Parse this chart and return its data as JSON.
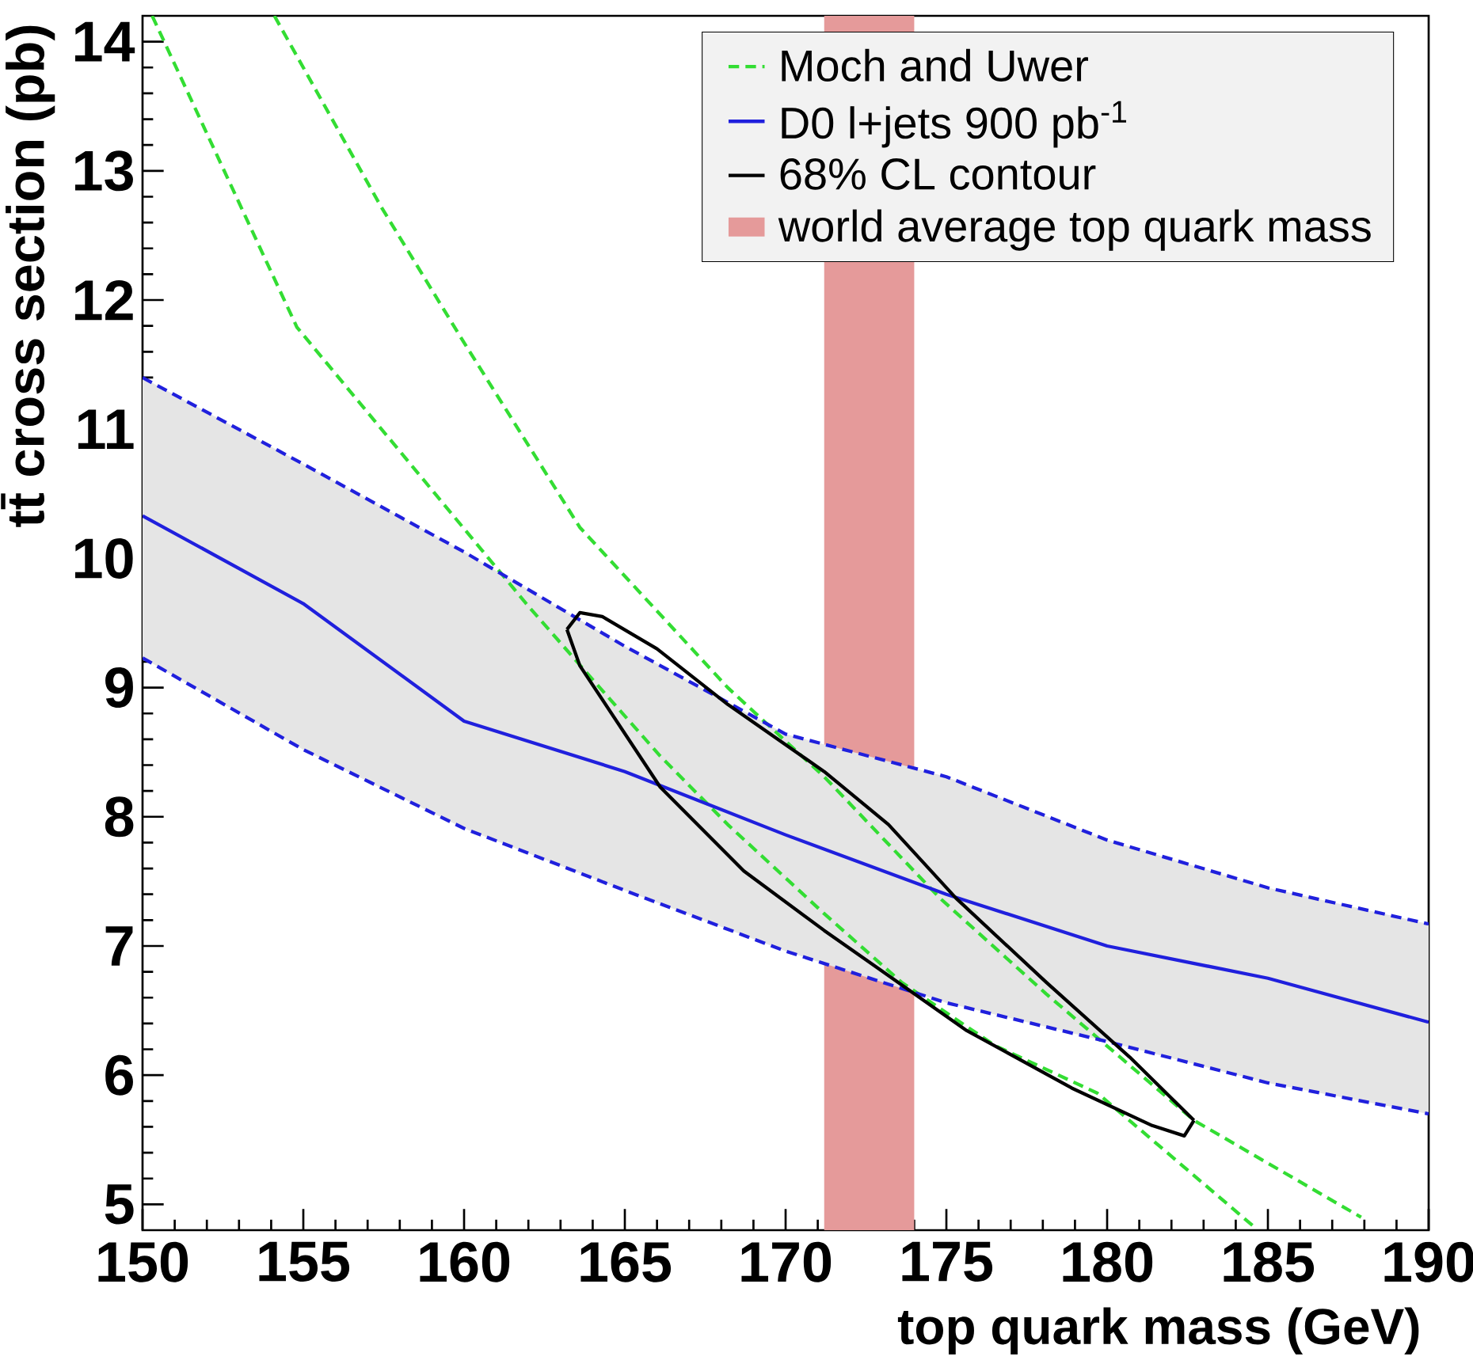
{
  "chart_data": {
    "type": "line",
    "xlabel": "top quark mass (GeV)",
    "ylabel": "tt̄ cross section (pb)",
    "xlim": [
      150,
      190
    ],
    "ylim": [
      4.8,
      14.2
    ],
    "xticks": [
      150,
      155,
      160,
      165,
      170,
      175,
      180,
      185,
      190
    ],
    "yticks": [
      5,
      6,
      7,
      8,
      9,
      10,
      11,
      12,
      13,
      14
    ],
    "legend": "top right",
    "series": [
      {
        "name": "Moch and Uwer",
        "color": "#33dd33",
        "line_style": "dashed",
        "x": [
          150.3,
          154.8,
          158.7,
          162.0,
          163.9,
          166.1,
          168.2,
          171.2,
          173.6,
          176.5,
          179.7,
          184.6
        ],
        "values": [
          14.2,
          11.79,
          10.62,
          9.63,
          9.09,
          8.47,
          7.94,
          7.25,
          6.72,
          6.23,
          5.86,
          4.82
        ]
      },
      {
        "color": "#33dd33",
        "line_style": "dashed",
        "x": [
          154.1,
          157.4,
          159.9,
          163.6,
          168.2,
          171.2,
          174.8,
          178.1,
          182.7,
          187.9
        ],
        "values": [
          14.2,
          12.73,
          11.71,
          10.24,
          9.0,
          8.31,
          7.37,
          6.63,
          5.65,
          4.9
        ]
      },
      {
        "name": "D0 l+jets 900 pb$^{-1}$",
        "color": "#2020dd",
        "line_style": "solid",
        "x": [
          150,
          155,
          160,
          165,
          170,
          175,
          180,
          185,
          190
        ],
        "values": [
          10.33,
          9.65,
          8.74,
          8.35,
          7.86,
          7.4,
          7.0,
          6.75,
          6.41
        ],
        "lower": [
          9.23,
          8.52,
          7.91,
          7.43,
          6.96,
          6.56,
          6.26,
          5.94,
          5.7
        ],
        "upper": [
          11.4,
          10.73,
          10.05,
          9.32,
          8.64,
          8.31,
          7.82,
          7.45,
          7.17
        ]
      },
      {
        "color": "#2020dd",
        "line_style": "dashed",
        "x": [
          150,
          155,
          160,
          165,
          170,
          175,
          180,
          185,
          190
        ],
        "values": [
          9.23,
          8.52,
          7.91,
          7.43,
          6.96,
          6.56,
          6.26,
          5.94,
          5.7
        ]
      },
      {
        "color": "#2020dd",
        "line_style": "dashed",
        "x": [
          150,
          155,
          160,
          165,
          170,
          175,
          180,
          185,
          190
        ],
        "values": [
          11.4,
          10.73,
          10.05,
          9.32,
          8.64,
          8.31,
          7.82,
          7.45,
          7.17
        ]
      },
      {
        "name": "68% CL contour",
        "color": "#000000",
        "line_style": "solid",
        "x": [
          163.2,
          163.6,
          164.3,
          166.0,
          168.2,
          171.2,
          173.2,
          175.3,
          178.1,
          180.7,
          182.7
        ],
        "values": [
          9.45,
          9.58,
          9.55,
          9.3,
          8.87,
          8.35,
          7.94,
          7.37,
          6.72,
          6.14,
          5.65
        ]
      },
      {
        "color": "#000000",
        "line_style": "solid",
        "x": [
          163.2,
          163.6,
          166.1,
          168.7,
          171.2,
          172.8,
          175.6,
          178.9,
          181.4,
          182.4,
          182.7
        ],
        "values": [
          9.45,
          9.17,
          8.23,
          7.58,
          7.12,
          6.84,
          6.35,
          5.9,
          5.61,
          5.53,
          5.65
        ]
      }
    ],
    "bands": [
      {
        "axis": "x",
        "from": 171.2,
        "to": 174.0,
        "label": "world average top quark mass",
        "color": "#e59a9a"
      }
    ]
  }
}
